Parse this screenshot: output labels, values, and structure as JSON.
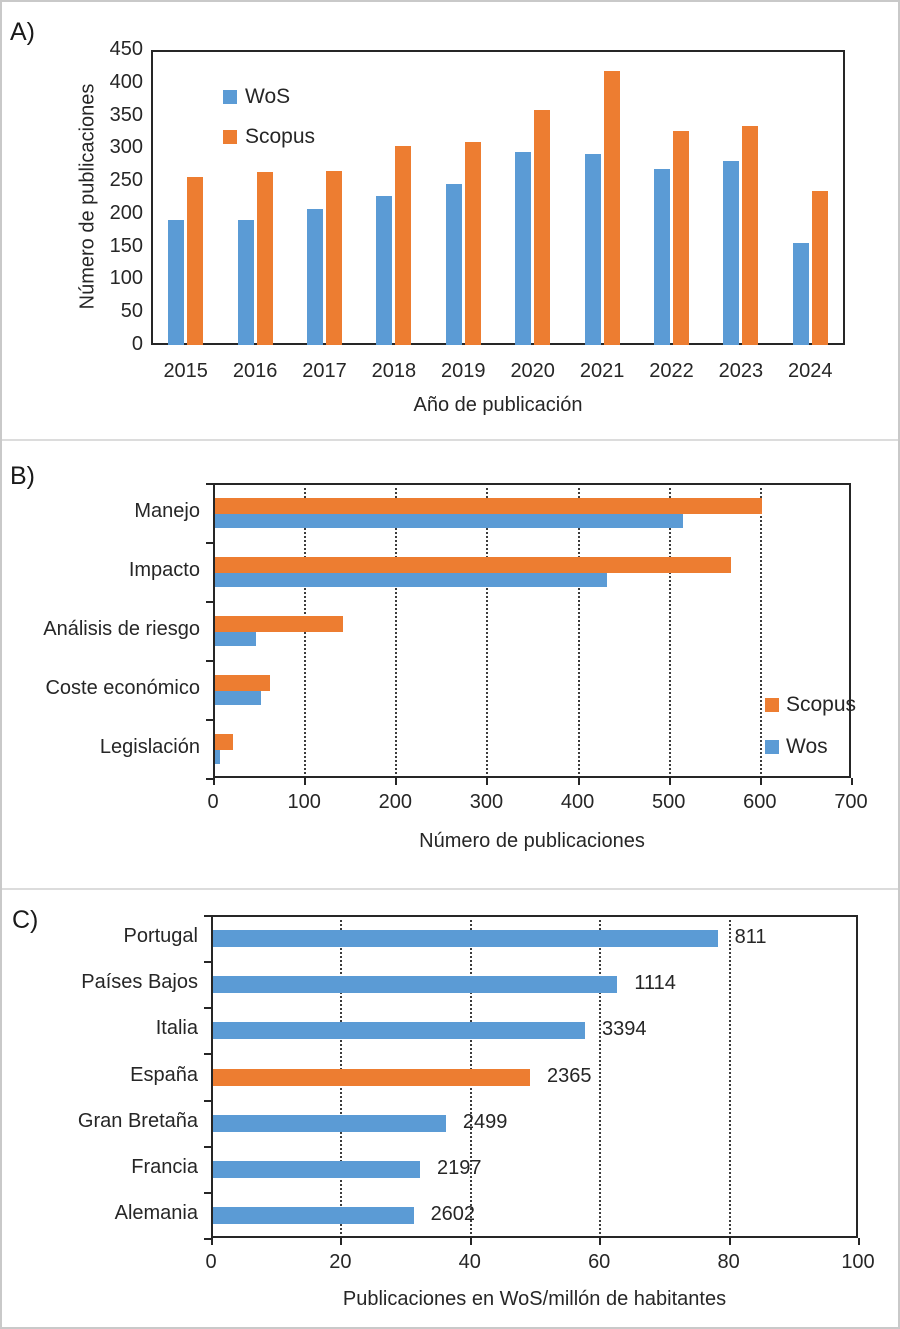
{
  "page": {
    "panel_a_label": "A)",
    "panel_b_label": "B)",
    "panel_c_label": "C)"
  },
  "colors": {
    "wos_blue": "#5B9BD5",
    "scopus_orange": "#ED7D31",
    "axis_dark": "#262626",
    "frame_gray": "#c9c9c9"
  },
  "chart_data": [
    {
      "id": "A",
      "type": "bar",
      "categories": [
        "2015",
        "2016",
        "2017",
        "2018",
        "2019",
        "2020",
        "2021",
        "2022",
        "2023",
        "2024"
      ],
      "series": [
        {
          "name": "WoS",
          "color": "#5B9BD5",
          "values": [
            190,
            191,
            207,
            227,
            246,
            295,
            292,
            269,
            281,
            155
          ]
        },
        {
          "name": "Scopus",
          "color": "#ED7D31",
          "values": [
            257,
            264,
            265,
            303,
            309,
            358,
            418,
            327,
            334,
            235
          ]
        }
      ],
      "xlabel": "Año de publicación",
      "ylabel": "Número de publicaciones",
      "ylim": [
        0,
        450
      ],
      "ytick_step": 50,
      "grid": false,
      "legend_position": "upper-left-inside"
    },
    {
      "id": "B",
      "type": "horizontal-bar",
      "categories": [
        "Manejo",
        "Impacto",
        "Análisis de riesgo",
        "Coste económico",
        "Legislación"
      ],
      "series": [
        {
          "name": "Scopus",
          "color": "#ED7D31",
          "values": [
            600,
            566,
            140,
            60,
            20
          ]
        },
        {
          "name": "Wos",
          "color": "#5B9BD5",
          "values": [
            513,
            430,
            45,
            50,
            5
          ]
        }
      ],
      "xlabel": "Número de publicaciones",
      "xlim": [
        0,
        700
      ],
      "xtick_step": 100,
      "grid": true,
      "legend_position": "right-inside"
    },
    {
      "id": "C",
      "type": "horizontal-bar",
      "categories": [
        "Portugal",
        "Países Bajos",
        "Italia",
        "España",
        "Gran Bretaña",
        "Francia",
        "Alemania"
      ],
      "values": [
        78,
        62.5,
        57.5,
        49,
        36,
        32,
        31
      ],
      "bar_colors": [
        "#5B9BD5",
        "#5B9BD5",
        "#5B9BD5",
        "#ED7D31",
        "#5B9BD5",
        "#5B9BD5",
        "#5B9BD5"
      ],
      "data_labels": [
        "811",
        "1114",
        "3394",
        "2365",
        "2499",
        "2197",
        "2602"
      ],
      "xlabel": "Publicaciones en WoS/millón de habitantes",
      "xlim": [
        0,
        100
      ],
      "xtick_step": 20,
      "grid": true,
      "legend_position": "none"
    }
  ]
}
